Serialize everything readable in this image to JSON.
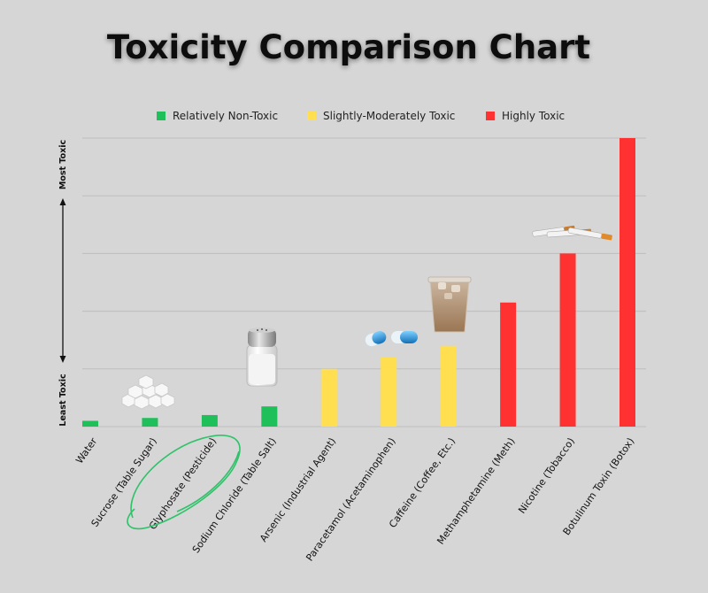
{
  "chart_data": {
    "type": "bar",
    "title": "Toxicity Comparison Chart",
    "y_top_label": "Most Toxic",
    "y_bottom_label": "Least Toxic",
    "ylim": [
      0,
      100
    ],
    "grid": true,
    "legend_position": "top",
    "legend": [
      {
        "label": "Relatively Non-Toxic",
        "color": "#1fbf5a"
      },
      {
        "label": "Slightly-Moderately Toxic",
        "color": "#ffdf4f"
      },
      {
        "label": "Highly Toxic",
        "color": "#ff3131"
      }
    ],
    "categories": [
      "Water",
      "Sucrose (Table Sugar)",
      "Glyphosate (Pesticide)",
      "Sodium Chloride (Table Salt)",
      "Arsenic (Industrial Agent)",
      "Paracetamol (Acetaminophen)",
      "Caffeine (Coffee, Etc.)",
      "Methamphetamine (Meth)",
      "Nicotine (Tobacco)",
      "Botulinum Toxin (Botox)"
    ],
    "values": [
      2,
      3,
      4,
      7,
      20,
      24,
      28,
      43,
      60,
      100
    ],
    "classes": [
      0,
      0,
      0,
      0,
      1,
      1,
      1,
      2,
      2,
      2
    ],
    "highlighted_category": "Glyphosate (Pesticide)",
    "illustrations": [
      {
        "category": "Sucrose (Table Sugar)",
        "icon": "sugar-cubes-icon"
      },
      {
        "category": "Sodium Chloride (Table Salt)",
        "icon": "salt-shaker-icon"
      },
      {
        "category": "Paracetamol (Acetaminophen)",
        "icon": "pill-capsules-icon"
      },
      {
        "category": "Caffeine (Coffee, Etc.)",
        "icon": "iced-coffee-icon"
      },
      {
        "category": "Nicotine (Tobacco)",
        "icon": "cigarettes-icon"
      }
    ]
  }
}
